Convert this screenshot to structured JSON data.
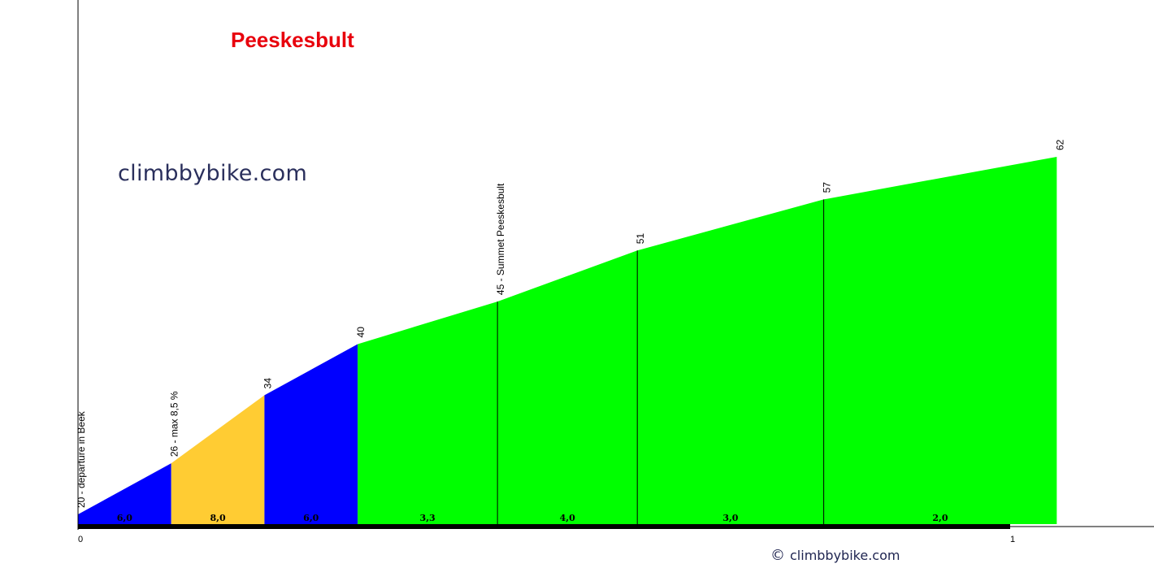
{
  "chart_data": {
    "type": "area",
    "title": "Peeskesbult",
    "xlabel": "",
    "ylabel": "",
    "x_ticks": [
      "0",
      "1"
    ],
    "xlim": [
      0,
      1.08
    ],
    "ylim": [
      20,
      62
    ],
    "points": [
      {
        "x": 0.0,
        "y": 20,
        "label": "20 - departure in Beek"
      },
      {
        "x": 0.1,
        "y": 26,
        "label": "26 - max  8,5 %"
      },
      {
        "x": 0.2,
        "y": 34,
        "label": "34"
      },
      {
        "x": 0.3,
        "y": 40,
        "label": "40"
      },
      {
        "x": 0.45,
        "y": 45,
        "label": "45 - Summet Peeskesbult"
      },
      {
        "x": 0.6,
        "y": 51,
        "label": "51"
      },
      {
        "x": 0.8,
        "y": 57,
        "label": "57"
      },
      {
        "x": 1.05,
        "y": 62,
        "label": "62"
      }
    ],
    "segments": [
      {
        "gradient": "6,0",
        "color": "#0000ff"
      },
      {
        "gradient": "8,0",
        "color": "#ffcc33"
      },
      {
        "gradient": "6,0",
        "color": "#0000ff"
      },
      {
        "gradient": "3,3",
        "color": "#00ff00"
      },
      {
        "gradient": "4,0",
        "color": "#00ff00"
      },
      {
        "gradient": "3,0",
        "color": "#00ff00"
      },
      {
        "gradient": "2,0",
        "color": "#00ff00"
      }
    ],
    "grid": false,
    "legend": "none"
  },
  "watermark": {
    "main": "climbbybike.com",
    "bottom": "climbbybike.com",
    "copyright_symbol": "©"
  },
  "colors": {
    "title": "#e8000c",
    "axis": "#000000"
  }
}
